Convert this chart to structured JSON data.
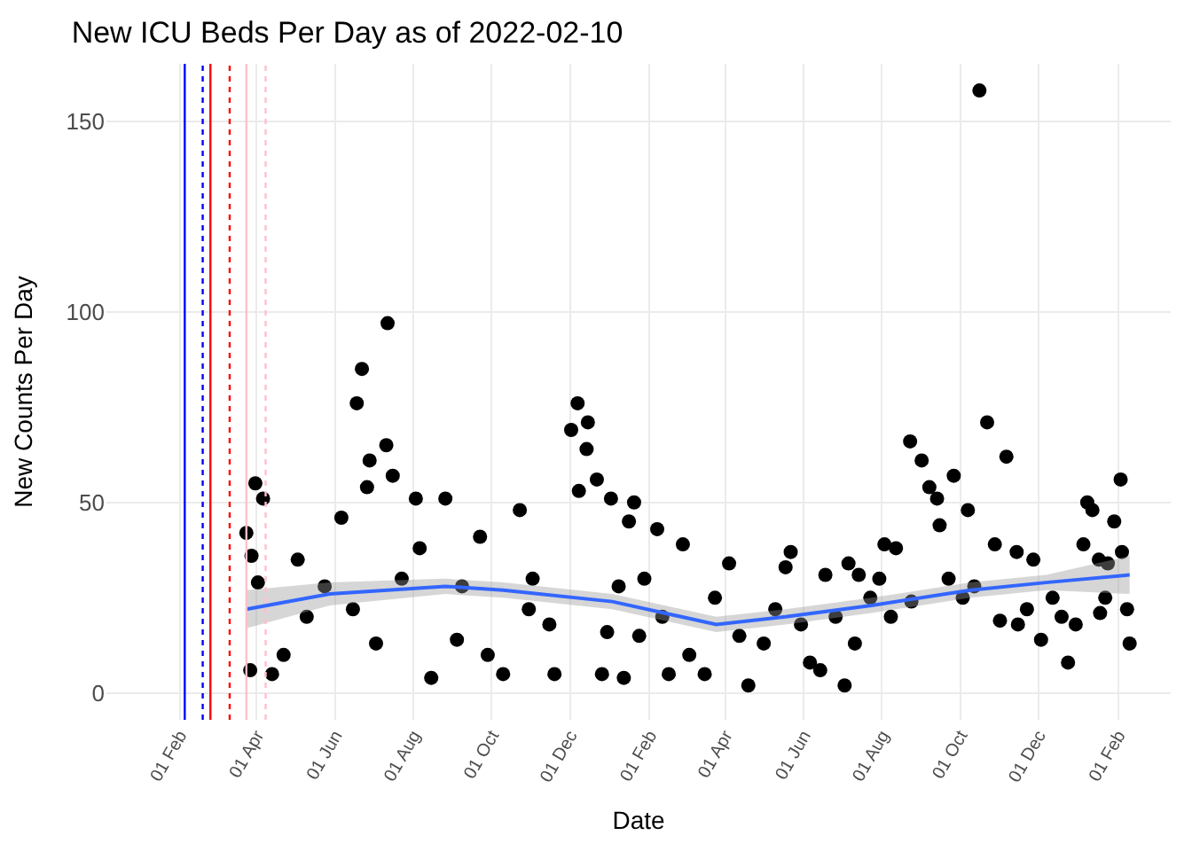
{
  "chart_data": {
    "type": "scatter",
    "title": "New ICU Beds Per Day as of 2022-02-10",
    "xlabel": "Date",
    "ylabel": "New Counts Per Day",
    "xlim": [
      "2019-12-06",
      "2022-03-14"
    ],
    "ylim": [
      -7,
      165
    ],
    "yticks": [
      0,
      50,
      100,
      150
    ],
    "xticks": [
      {
        "value": "2020-02-01",
        "label": "01 Feb"
      },
      {
        "value": "2020-04-01",
        "label": "01 Apr"
      },
      {
        "value": "2020-06-01",
        "label": "01 Jun"
      },
      {
        "value": "2020-08-01",
        "label": "01 Aug"
      },
      {
        "value": "2020-10-01",
        "label": "01 Oct"
      },
      {
        "value": "2020-12-01",
        "label": "01 Dec"
      },
      {
        "value": "2021-02-01",
        "label": "01 Feb"
      },
      {
        "value": "2021-04-01",
        "label": "01 Apr"
      },
      {
        "value": "2021-06-01",
        "label": "01 Jun"
      },
      {
        "value": "2021-08-01",
        "label": "01 Aug"
      },
      {
        "value": "2021-10-01",
        "label": "01 Oct"
      },
      {
        "value": "2021-12-01",
        "label": "01 Dec"
      },
      {
        "value": "2022-02-01",
        "label": "01 Feb"
      }
    ],
    "grid": true,
    "marker": "circle",
    "series": [
      {
        "color": "#000000",
        "x": [
          "2020-03-24",
          "2020-03-27",
          "2020-03-28",
          "2020-03-31",
          "2020-04-02",
          "2020-04-06",
          "2020-04-13",
          "2020-04-22",
          "2020-05-03",
          "2020-05-10",
          "2020-05-24",
          "2020-06-06",
          "2020-06-15",
          "2020-06-18",
          "2020-06-22",
          "2020-06-26",
          "2020-06-28",
          "2020-07-03",
          "2020-07-11",
          "2020-07-12",
          "2020-07-16",
          "2020-07-23",
          "2020-08-03",
          "2020-08-06",
          "2020-08-15",
          "2020-08-26",
          "2020-09-04",
          "2020-09-08",
          "2020-09-22",
          "2020-09-28",
          "2020-10-10",
          "2020-10-23",
          "2020-10-30",
          "2020-11-02",
          "2020-11-15",
          "2020-11-19",
          "2020-12-02",
          "2020-12-07",
          "2020-12-08",
          "2020-12-14",
          "2020-12-15",
          "2020-12-22",
          "2020-12-26",
          "2020-12-30",
          "2021-01-02",
          "2021-01-08",
          "2021-01-12",
          "2021-01-16",
          "2021-01-20",
          "2021-01-24",
          "2021-01-28",
          "2021-02-07",
          "2021-02-11",
          "2021-02-16",
          "2021-02-27",
          "2021-03-04",
          "2021-03-16",
          "2021-03-24",
          "2021-04-04",
          "2021-04-12",
          "2021-04-19",
          "2021-05-01",
          "2021-05-10",
          "2021-05-18",
          "2021-05-22",
          "2021-05-30",
          "2021-06-06",
          "2021-06-14",
          "2021-06-18",
          "2021-06-26",
          "2021-07-03",
          "2021-07-06",
          "2021-07-11",
          "2021-07-14",
          "2021-07-23",
          "2021-07-30",
          "2021-08-03",
          "2021-08-08",
          "2021-08-12",
          "2021-08-23",
          "2021-08-24",
          "2021-09-01",
          "2021-09-07",
          "2021-09-13",
          "2021-09-15",
          "2021-09-22",
          "2021-09-26",
          "2021-10-03",
          "2021-10-07",
          "2021-10-12",
          "2021-10-16",
          "2021-10-22",
          "2021-10-28",
          "2021-11-01",
          "2021-11-06",
          "2021-11-14",
          "2021-11-15",
          "2021-11-22",
          "2021-11-27",
          "2021-12-03",
          "2021-12-12",
          "2021-12-19",
          "2021-12-24",
          "2021-12-30",
          "2022-01-05",
          "2022-01-08",
          "2022-01-12",
          "2022-01-17",
          "2022-01-18",
          "2022-01-22",
          "2022-01-24",
          "2022-01-29",
          "2022-02-03",
          "2022-02-04",
          "2022-02-08",
          "2022-02-10"
        ],
        "values": [
          42,
          6,
          36,
          55,
          29,
          51,
          5,
          10,
          35,
          20,
          28,
          46,
          22,
          76,
          85,
          54,
          61,
          13,
          65,
          97,
          57,
          30,
          51,
          38,
          4,
          51,
          14,
          28,
          41,
          10,
          5,
          48,
          22,
          30,
          18,
          5,
          69,
          76,
          53,
          64,
          71,
          56,
          5,
          16,
          51,
          28,
          4,
          45,
          50,
          15,
          30,
          43,
          20,
          5,
          39,
          10,
          5,
          25,
          34,
          15,
          2,
          13,
          22,
          33,
          37,
          18,
          8,
          6,
          31,
          20,
          2,
          34,
          13,
          31,
          25,
          30,
          39,
          20,
          38,
          66,
          24,
          61,
          54,
          51,
          44,
          30,
          57,
          25,
          48,
          28,
          158,
          71,
          39,
          19,
          62,
          37,
          18,
          22,
          35,
          14,
          25,
          20,
          8,
          18,
          39,
          50,
          48,
          35,
          21,
          25,
          34,
          45,
          56,
          37,
          22,
          13
        ]
      },
      {
        "type": "line",
        "color": "#3366ff",
        "marker": "none",
        "x": [
          "2020-03-24",
          "2020-05-28",
          "2020-08-26",
          "2020-10-10",
          "2021-01-03",
          "2021-03-25",
          "2021-05-18",
          "2021-07-24",
          "2021-10-09",
          "2021-12-07",
          "2022-02-10"
        ],
        "values": [
          22,
          26,
          28,
          27,
          24,
          18,
          20,
          23,
          27,
          29,
          31
        ],
        "lower": [
          17,
          23,
          26,
          25,
          22,
          16,
          18,
          21,
          25,
          27,
          26
        ],
        "upper": [
          27,
          29,
          30,
          29,
          26,
          20,
          22,
          25,
          29,
          31,
          36
        ]
      }
    ],
    "ref_lines": [
      {
        "axis": "x",
        "value": "2020-02-05",
        "color": "#0000ff",
        "line_style": "solid"
      },
      {
        "axis": "x",
        "value": "2020-02-19",
        "color": "#0000ff",
        "line_style": "dotted"
      },
      {
        "axis": "x",
        "value": "2020-02-25",
        "color": "#ff0000",
        "line_style": "solid"
      },
      {
        "axis": "x",
        "value": "2020-03-11",
        "color": "#ff0000",
        "line_style": "dotted"
      },
      {
        "axis": "x",
        "value": "2020-03-24",
        "color": "#ffc0cb",
        "line_style": "solid"
      },
      {
        "axis": "x",
        "value": "2020-04-08",
        "color": "#ffc0cb",
        "line_style": "dotted"
      }
    ]
  }
}
